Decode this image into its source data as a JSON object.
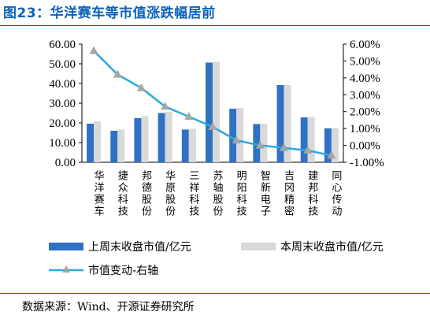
{
  "title": "图23：华洋赛车等市值涨跌幅居前",
  "source": "数据来源：Wind、开源证券研究所",
  "colors": {
    "title": "#0b63b8",
    "series1": "#2f72c4",
    "series2": "#d9d9d9",
    "line": "#2ea8df",
    "marker": "#a6a6a6"
  },
  "chart_data": {
    "type": "bar",
    "categories": [
      "华洋赛车",
      "捷众科技",
      "邦德股份",
      "华原股份",
      "三祥科技",
      "苏轴股份",
      "明阳科技",
      "智新电子",
      "吉冈精密",
      "建邦科技",
      "同心传动"
    ],
    "series": [
      {
        "name": "上周末收盘市值/亿元",
        "axis": "left",
        "type": "bar",
        "values": [
          19.6,
          16.0,
          22.4,
          25.0,
          16.6,
          50.6,
          27.2,
          19.4,
          39.2,
          22.8,
          17.2
        ]
      },
      {
        "name": "本周末收盘市值/亿元",
        "axis": "left",
        "type": "bar",
        "values": [
          20.8,
          16.6,
          23.4,
          25.6,
          17.0,
          51.0,
          27.6,
          19.6,
          39.2,
          23.0,
          17.4
        ]
      },
      {
        "name": "市值变动-右轴",
        "axis": "right",
        "type": "line",
        "values": [
          5.6,
          4.2,
          3.4,
          2.3,
          1.7,
          1.1,
          0.3,
          0.0,
          -0.15,
          -0.3,
          -0.6
        ]
      }
    ],
    "left_axis": {
      "ticks": [
        "0.00",
        "10.00",
        "20.00",
        "30.00",
        "40.00",
        "50.00",
        "60.00"
      ],
      "ylim": [
        0,
        60
      ]
    },
    "right_axis": {
      "ticks": [
        "-1.00%",
        "0.00%",
        "1.00%",
        "2.00%",
        "3.00%",
        "4.00%",
        "5.00%",
        "6.00%"
      ],
      "ylim": [
        -1,
        6
      ]
    },
    "legend_position": "bottom"
  }
}
